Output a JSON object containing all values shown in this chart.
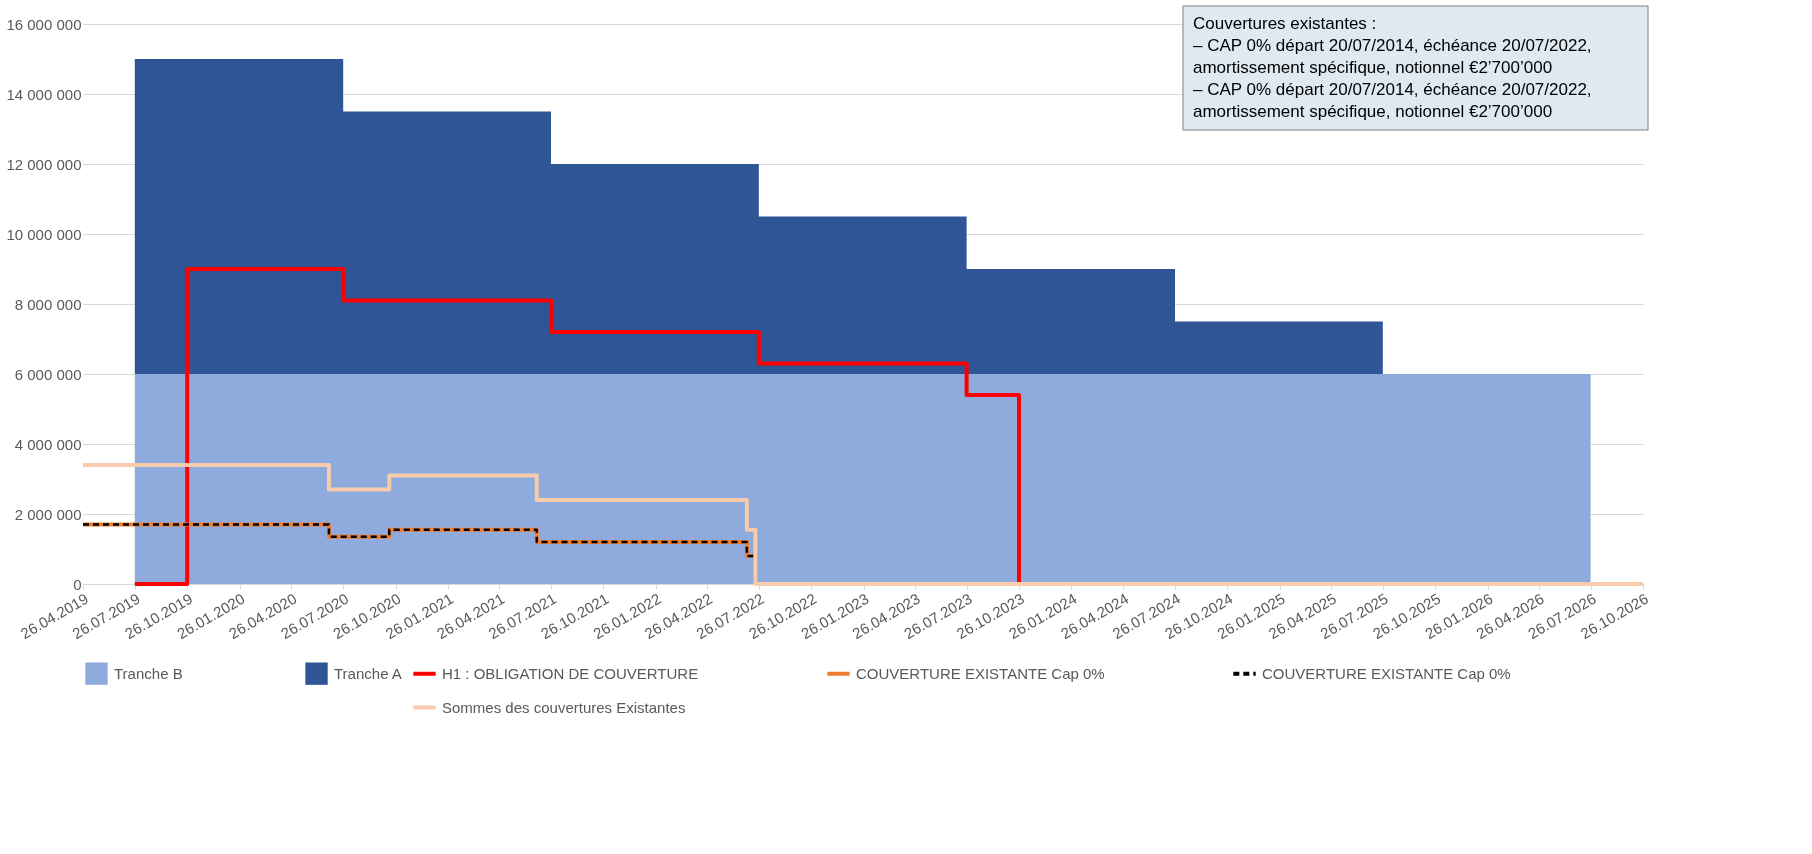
{
  "chart_data": {
    "type": "area",
    "stacked": true,
    "grid": "y",
    "legend": "bottom",
    "x": [
      "2019-07-26",
      "2020-07-26",
      "2021-07-26",
      "2022-07-26",
      "2023-07-26",
      "2024-07-26",
      "2025-07-26",
      "2026-07-26"
    ],
    "series": [
      {
        "name": "Tranche B",
        "color": "#8faadc",
        "values": [
          6000000,
          6000000,
          6000000,
          6000000,
          6000000,
          6000000,
          6000000,
          6000000
        ]
      },
      {
        "name": "Tranche A",
        "color": "#2f5597",
        "values": [
          9000000,
          7500000,
          6000000,
          4500000,
          3000000,
          1500000,
          0,
          0
        ]
      },
      {
        "name": "H1 : OBLIGATION DE COUVERTURE",
        "type": "step",
        "color": "#ff0000",
        "x": [
          "2019-07-26",
          "2019-10-26",
          "2020-07-26",
          "2021-07-26",
          "2022-07-26",
          "2023-07-26",
          "2023-10-26"
        ],
        "values": [
          0,
          9000000,
          8100000,
          7200000,
          6300000,
          5400000,
          0
        ]
      },
      {
        "name": "COUVERTURE EXISTANTE Cap 0%",
        "type": "step",
        "color": "#ed7d31",
        "x": [
          "2019-04-26",
          "2020-07-01",
          "2020-10-15",
          "2021-07-01",
          "2022-07-05",
          "2022-07-20"
        ],
        "values": [
          1700000,
          1350000,
          1550000,
          1200000,
          800000,
          0
        ]
      },
      {
        "name": "COUVERTURE EXISTANTE Cap 0%",
        "type": "step",
        "color": "#000000",
        "line_style": "dashed",
        "x": [
          "2019-04-26",
          "2020-07-01",
          "2020-10-15",
          "2021-07-01",
          "2022-07-05",
          "2022-07-20"
        ],
        "values": [
          1700000,
          1350000,
          1550000,
          1200000,
          800000,
          0
        ]
      },
      {
        "name": "Sommes des couvertures Existantes",
        "type": "step",
        "color": "#f8cbad",
        "x": [
          "2019-04-26",
          "2020-07-01",
          "2020-10-15",
          "2021-07-01",
          "2022-07-05",
          "2022-07-20",
          "2026-10-26"
        ],
        "values": [
          3400000,
          2700000,
          3100000,
          2400000,
          1550000,
          0,
          0
        ]
      }
    ],
    "ylim": [
      0,
      16000000
    ],
    "yticks": [
      {
        "value": 0,
        "label": "0"
      },
      {
        "value": 2000000,
        "label": "2 000 000"
      },
      {
        "value": 4000000,
        "label": "4 000 000"
      },
      {
        "value": 6000000,
        "label": "6 000 000"
      },
      {
        "value": 8000000,
        "label": "8 000 000"
      },
      {
        "value": 10000000,
        "label": "10 000 000"
      },
      {
        "value": 12000000,
        "label": "12 000 000"
      },
      {
        "value": 14000000,
        "label": "14 000 000"
      },
      {
        "value": 16000000,
        "label": "16 000 000"
      }
    ],
    "xlim": [
      "2019-04-26",
      "2026-10-26"
    ],
    "xticks": [
      {
        "value": "2019-04-26",
        "label": "26.04.2019"
      },
      {
        "value": "2019-07-26",
        "label": "26.07.2019"
      },
      {
        "value": "2019-10-26",
        "label": "26.10.2019"
      },
      {
        "value": "2020-01-26",
        "label": "26.01.2020"
      },
      {
        "value": "2020-04-26",
        "label": "26.04.2020"
      },
      {
        "value": "2020-07-26",
        "label": "26.07.2020"
      },
      {
        "value": "2020-10-26",
        "label": "26.10.2020"
      },
      {
        "value": "2021-01-26",
        "label": "26.01.2021"
      },
      {
        "value": "2021-04-26",
        "label": "26.04.2021"
      },
      {
        "value": "2021-07-26",
        "label": "26.07.2021"
      },
      {
        "value": "2021-10-26",
        "label": "26.10.2021"
      },
      {
        "value": "2022-01-26",
        "label": "26.01.2022"
      },
      {
        "value": "2022-04-26",
        "label": "26.04.2022"
      },
      {
        "value": "2022-07-26",
        "label": "26.07.2022"
      },
      {
        "value": "2022-10-26",
        "label": "26.10.2022"
      },
      {
        "value": "2023-01-26",
        "label": "26.01.2023"
      },
      {
        "value": "2023-04-26",
        "label": "26.04.2023"
      },
      {
        "value": "2023-07-26",
        "label": "26.07.2023"
      },
      {
        "value": "2023-10-26",
        "label": "26.10.2023"
      },
      {
        "value": "2024-01-26",
        "label": "26.01.2024"
      },
      {
        "value": "2024-04-26",
        "label": "26.04.2024"
      },
      {
        "value": "2024-07-26",
        "label": "26.07.2024"
      },
      {
        "value": "2024-10-26",
        "label": "26.10.2024"
      },
      {
        "value": "2025-01-26",
        "label": "26.01.2025"
      },
      {
        "value": "2025-04-26",
        "label": "26.04.2025"
      },
      {
        "value": "2025-07-26",
        "label": "26.07.2025"
      },
      {
        "value": "2025-10-26",
        "label": "26.10.2025"
      },
      {
        "value": "2026-01-26",
        "label": "26.01.2026"
      },
      {
        "value": "2026-04-26",
        "label": "26.04.2026"
      },
      {
        "value": "2026-07-26",
        "label": "26.07.2026"
      },
      {
        "value": "2026-10-26",
        "label": "26.10.2026"
      }
    ],
    "annotations": [
      "Couvertures existantes :",
      "– CAP 0% départ 20/07/2014, échéance 20/07/2022, amortissement spécifique, notionnel €2’700’000",
      "– CAP 0% départ 20/07/2014, échéance 20/07/2022, amortissement spécifique, notionnel €2’700’000"
    ]
  }
}
